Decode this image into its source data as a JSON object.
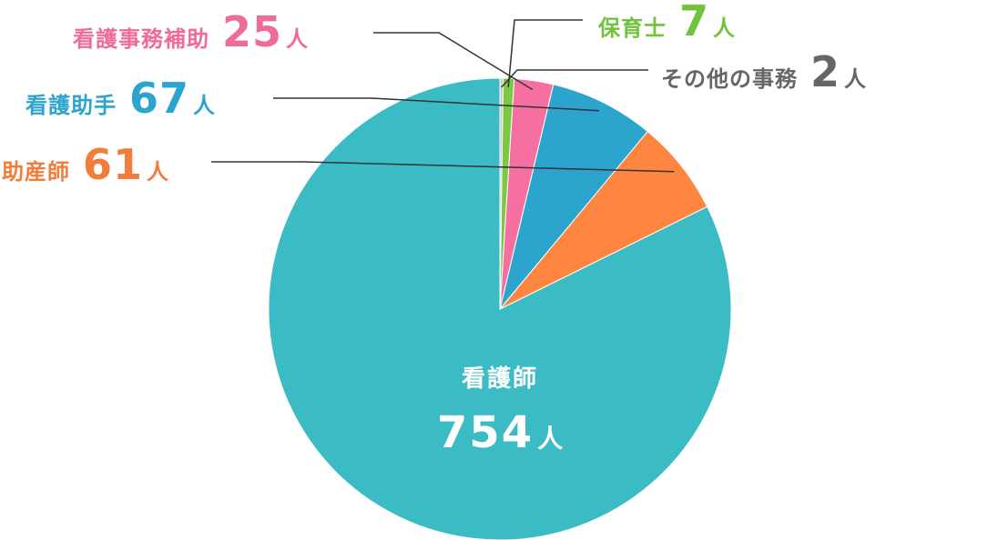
{
  "chart_data": {
    "type": "pie",
    "unit": "人",
    "slices": [
      {
        "name": "看護師",
        "value": 754,
        "color": "#3bbcc4"
      },
      {
        "name": "助産師",
        "value": 61,
        "color": "#ff8641"
      },
      {
        "name": "看護助手",
        "value": 67,
        "color": "#2ba5ce"
      },
      {
        "name": "看護事務補助",
        "value": 25,
        "color": "#f56fa0"
      },
      {
        "name": "保育士",
        "value": 7,
        "color": "#7dc843"
      },
      {
        "name": "その他の事務",
        "value": 2,
        "color": "#c9c9c9"
      }
    ],
    "label_colors": {
      "看護師": "#ffffff",
      "助産師": "#f27d3a",
      "看護助手": "#2ba5ce",
      "看護事務補助": "#ee6b9a",
      "保育士": "#6fc43c",
      "その他の事務": "#666666"
    },
    "leader_line_color": "#333333",
    "start_angle": "12 o'clock",
    "direction": "counterclockwise"
  }
}
